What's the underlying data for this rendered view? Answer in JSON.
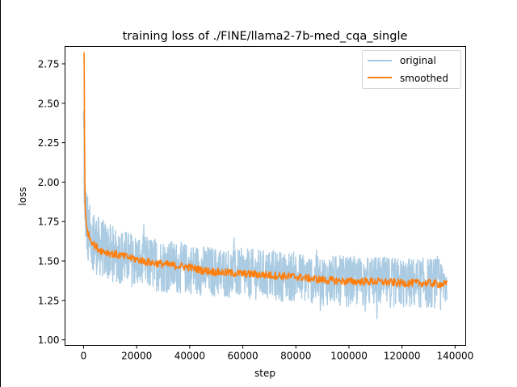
{
  "chart_data": {
    "type": "line",
    "title": "training loss of ./FINE/llama2-7b-med_cqa_single",
    "xlabel": "step",
    "ylabel": "loss",
    "xlim": [
      -7000,
      144000
    ],
    "ylim": [
      0.965,
      2.86
    ],
    "x_ticks": [
      0,
      20000,
      40000,
      60000,
      80000,
      100000,
      120000,
      140000
    ],
    "x_tick_labels": [
      "0",
      "20000",
      "40000",
      "60000",
      "80000",
      "100000",
      "120000",
      "140000"
    ],
    "y_ticks": [
      1.0,
      1.25,
      1.5,
      1.75,
      2.0,
      2.25,
      2.5,
      2.75
    ],
    "y_tick_labels": [
      "1.00",
      "1.25",
      "1.50",
      "1.75",
      "2.00",
      "2.25",
      "2.50",
      "2.75"
    ],
    "legend": {
      "position": "top-right",
      "entries": [
        "original",
        "smoothed"
      ]
    },
    "series": [
      {
        "name": "original",
        "color": "#a6c8e0",
        "note": "noisy raw loss; center line with band half-width",
        "x": [
          0,
          500,
          2000,
          5000,
          10000,
          20000,
          30000,
          40000,
          50000,
          60000,
          70000,
          80000,
          90000,
          100000,
          110000,
          120000,
          130000,
          137000
        ],
        "center": [
          2.3,
          1.82,
          1.68,
          1.6,
          1.55,
          1.5,
          1.47,
          1.45,
          1.43,
          1.42,
          1.41,
          1.4,
          1.38,
          1.37,
          1.37,
          1.36,
          1.36,
          1.36
        ],
        "spread": [
          0.35,
          0.22,
          0.2,
          0.19,
          0.18,
          0.17,
          0.17,
          0.16,
          0.16,
          0.16,
          0.16,
          0.16,
          0.16,
          0.16,
          0.16,
          0.16,
          0.16,
          0.16
        ]
      },
      {
        "name": "smoothed",
        "color": "#ff7f0e",
        "x": [
          0,
          200,
          500,
          1000,
          2000,
          4000,
          6000,
          10000,
          15000,
          20000,
          25000,
          30000,
          35000,
          40000,
          45000,
          50000,
          60000,
          70000,
          80000,
          90000,
          100000,
          110000,
          120000,
          130000,
          137000
        ],
        "values": [
          2.82,
          2.82,
          1.85,
          1.72,
          1.66,
          1.6,
          1.57,
          1.55,
          1.53,
          1.51,
          1.49,
          1.48,
          1.47,
          1.46,
          1.44,
          1.43,
          1.42,
          1.41,
          1.4,
          1.38,
          1.37,
          1.37,
          1.36,
          1.36,
          1.35
        ]
      }
    ]
  }
}
